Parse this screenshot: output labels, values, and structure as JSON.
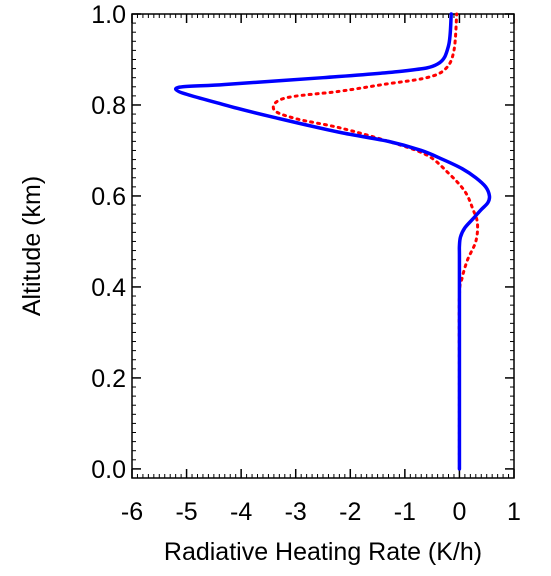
{
  "chart_data": {
    "type": "line",
    "xlabel": "Radiative Heating Rate (K/h)",
    "ylabel": "Altitude (km)",
    "xlim": [
      -6,
      1
    ],
    "ylim": [
      -0.02,
      1.0
    ],
    "xticks": [
      -6,
      -5,
      -4,
      -3,
      -2,
      -1,
      0,
      1
    ],
    "xtick_labels": [
      "-6",
      "-5",
      "-4",
      "-3",
      "-2",
      "-1",
      "0",
      "1"
    ],
    "yticks": [
      0.0,
      0.2,
      0.4,
      0.6,
      0.8,
      1.0
    ],
    "ytick_labels": [
      "0.0",
      "0.2",
      "0.4",
      "0.6",
      "0.8",
      "1.0"
    ],
    "grid": false,
    "series": [
      {
        "style": "solid",
        "color": "#0000ff",
        "x": [
          0.0,
          0.0,
          0.0,
          0.0,
          0.0,
          0.02,
          0.1,
          0.25,
          0.4,
          0.52,
          0.55,
          0.48,
          0.3,
          0.05,
          -0.3,
          -0.7,
          -1.3,
          -2.2,
          -3.3,
          -4.3,
          -5.2,
          -4.3,
          -2.5,
          -1.0,
          -0.4,
          -0.2,
          -0.15
        ],
        "y": [
          0.0,
          0.2,
          0.4,
          0.47,
          0.49,
          0.51,
          0.53,
          0.55,
          0.57,
          0.585,
          0.6,
          0.62,
          0.64,
          0.66,
          0.68,
          0.7,
          0.72,
          0.74,
          0.77,
          0.8,
          0.835,
          0.845,
          0.86,
          0.875,
          0.89,
          0.93,
          1.0
        ]
      },
      {
        "style": "dotted",
        "color": "#ff0000",
        "x": [
          0.0,
          0.0,
          0.0,
          0.05,
          0.15,
          0.3,
          0.33,
          0.25,
          0.1,
          -0.2,
          -0.6,
          -1.3,
          -2.2,
          -3.0,
          -3.4,
          -3.2,
          -2.2,
          -1.4,
          -0.6,
          -0.25,
          -0.1,
          -0.05
        ],
        "y": [
          0.0,
          0.2,
          0.38,
          0.42,
          0.46,
          0.5,
          0.54,
          0.57,
          0.61,
          0.65,
          0.69,
          0.72,
          0.75,
          0.77,
          0.79,
          0.815,
          0.83,
          0.845,
          0.86,
          0.88,
          0.92,
          1.0
        ]
      }
    ]
  }
}
